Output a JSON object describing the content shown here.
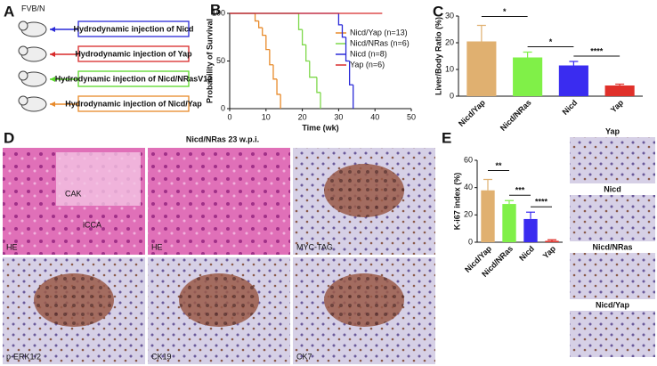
{
  "figure": {
    "panel_labels": [
      "A",
      "B",
      "C",
      "D",
      "E"
    ],
    "panel_a": {
      "strain": "FVB/N",
      "injections": [
        {
          "label": "Hydrodynamic injection of Nicd",
          "color": "#2a2ad8"
        },
        {
          "label": "Hydrodynamic injection of Yap",
          "color": "#d82a2a"
        },
        {
          "label": "Hydrodynamic injection of Nicd/NRasV12",
          "color": "#5ad82a"
        },
        {
          "label": "Hydrodynamic injection of Nicd/Yap",
          "color": "#e88a2a"
        }
      ]
    },
    "panel_d": {
      "title": "Nicd/NRas  23 w.p.i.",
      "tiles": [
        {
          "stain": "HE",
          "regions": [
            "CAK",
            "iCCA"
          ]
        },
        {
          "stain": "HE",
          "regions": []
        },
        {
          "stain": "MYC-TAG",
          "regions": []
        },
        {
          "stain": "p-ERK1/2",
          "regions": []
        },
        {
          "stain": "CK19",
          "regions": []
        },
        {
          "stain": "CK7",
          "regions": []
        }
      ]
    },
    "panel_e_images": [
      "Yap",
      "Nicd",
      "Nicd/NRas",
      "Nicd/Yap"
    ]
  },
  "chart_data": [
    {
      "type": "line",
      "step": true,
      "xlabel": "Time (wk)",
      "ylabel": "Probability of Survival",
      "xlim": [
        0,
        50
      ],
      "ylim": [
        0,
        100
      ],
      "xticks": [
        0,
        10,
        20,
        30,
        40,
        50
      ],
      "yticks": [
        0,
        50,
        100
      ],
      "legend": "right",
      "series": [
        {
          "name": "Nicd/Yap (n=13)",
          "color": "#e88a2a",
          "x": [
            0,
            7,
            8,
            9,
            10,
            11,
            12,
            13,
            14
          ],
          "values": [
            100,
            92,
            85,
            77,
            62,
            46,
            31,
            15,
            0
          ]
        },
        {
          "name": "Nicd/NRas (n=6)",
          "color": "#7ed84a",
          "x": [
            0,
            19,
            20,
            21,
            22,
            24,
            25
          ],
          "values": [
            100,
            83,
            67,
            50,
            33,
            17,
            0
          ]
        },
        {
          "name": "Nicd (n=8)",
          "color": "#2a2ad8",
          "x": [
            0,
            30,
            31,
            32,
            33,
            34
          ],
          "values": [
            100,
            88,
            75,
            50,
            25,
            0
          ]
        },
        {
          "name": "Yap (n=6)",
          "color": "#d82a2a",
          "x": [
            0,
            42
          ],
          "values": [
            100,
            100
          ]
        }
      ]
    },
    {
      "type": "bar",
      "ylabel": "Liver/Body Ratio (%)",
      "ylim": [
        0,
        30
      ],
      "yticks": [
        0,
        10,
        20,
        30
      ],
      "categories": [
        "Nicd/Yap",
        "Nicd/NRas",
        "Nicd",
        "Yap"
      ],
      "values": [
        20.5,
        14.5,
        11.5,
        4
      ],
      "errors": [
        6,
        2,
        1.5,
        0.5
      ],
      "colors": [
        "#e0b070",
        "#80f048",
        "#3a2cf0",
        "#e0302a"
      ],
      "annotations": [
        "*",
        "*",
        "****"
      ]
    },
    {
      "type": "bar",
      "ylabel": "K-i67 index (%)",
      "ylim": [
        0,
        60
      ],
      "yticks": [
        0,
        20,
        40,
        60
      ],
      "categories": [
        "Nicd/Yap",
        "Nicd/NRas",
        "Nicd",
        "Yap"
      ],
      "values": [
        38,
        28,
        17,
        1
      ],
      "errors": [
        8,
        2.5,
        5,
        0.8
      ],
      "colors": [
        "#e0b070",
        "#80f048",
        "#3a2cf0",
        "#e0302a"
      ],
      "annotations": [
        "**",
        "***",
        "****"
      ]
    }
  ]
}
